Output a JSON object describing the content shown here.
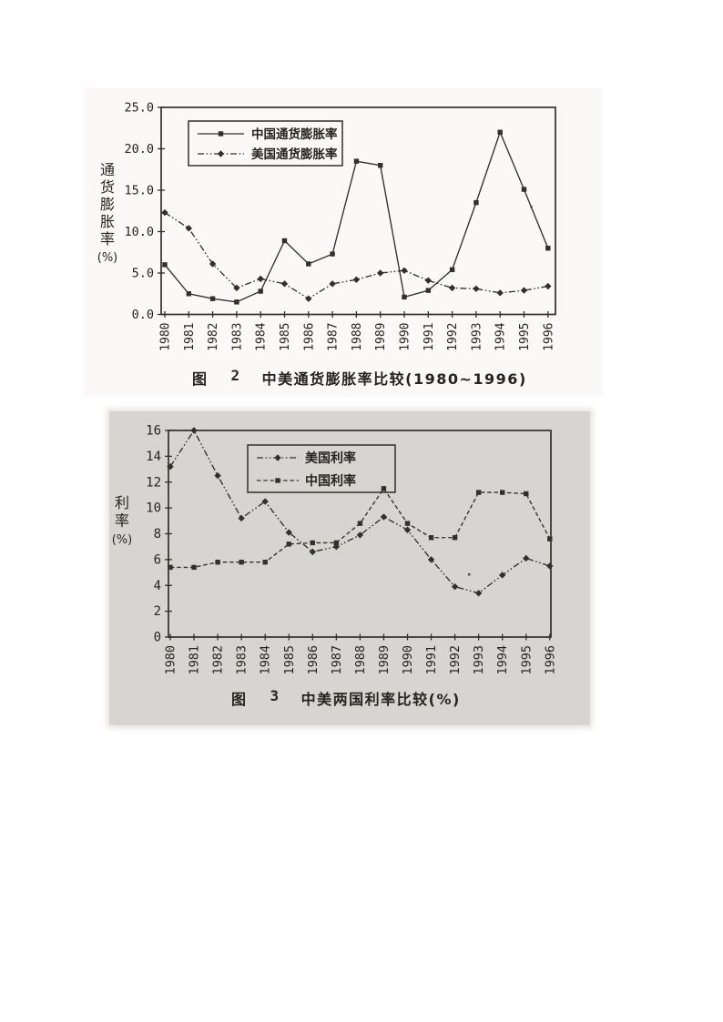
{
  "colors": {
    "ink": "#26241f",
    "line": "#33302b",
    "paper": "#ffffff",
    "scan_gray": "#d7d5d1"
  },
  "chart_data": [
    {
      "type": "line",
      "figure_label": "图",
      "figure_number": "2",
      "caption": "中美通货膨胀率比较(1980~1996)",
      "ylabel": "通货膨胀率(%)",
      "ylabel_stacked": [
        "通",
        "货",
        "膨",
        "胀",
        "率",
        "(%)"
      ],
      "ylim": [
        0,
        25
      ],
      "ytick_values": [
        0,
        5,
        10,
        15,
        20,
        25
      ],
      "ytick_labels": [
        "0.0",
        "5.0",
        "10.0",
        "15.0",
        "20.0",
        "25.0"
      ],
      "categories": [
        "1980",
        "1981",
        "1982",
        "1983",
        "1984",
        "1985",
        "1986",
        "1987",
        "1988",
        "1989",
        "1990",
        "1991",
        "1992",
        "1993",
        "1994",
        "1995",
        "1996"
      ],
      "grid": false,
      "legend_position": "top-left-inside",
      "series": [
        {
          "name": "中国通货膨胀率",
          "marker": "square",
          "line_style": "solid",
          "values": [
            6.0,
            2.5,
            1.9,
            1.5,
            2.8,
            8.9,
            6.1,
            7.3,
            18.5,
            18.0,
            2.1,
            2.9,
            5.4,
            13.5,
            22.0,
            15.1,
            8.0
          ]
        },
        {
          "name": "美国通货膨胀率",
          "marker": "diamond",
          "line_style": "dashdot",
          "values": [
            12.3,
            10.4,
            6.1,
            3.2,
            4.3,
            3.7,
            1.9,
            3.7,
            4.2,
            5.0,
            5.3,
            4.1,
            3.2,
            3.1,
            2.6,
            2.9,
            3.4
          ]
        }
      ],
      "stray_points": [
        {
          "x_index": 15.3,
          "value": 13.0
        }
      ]
    },
    {
      "type": "line",
      "figure_label": "图",
      "figure_number": "3",
      "caption": "中美两国利率比较(%)",
      "ylabel": "利率(%)",
      "ylabel_stacked": [
        "利",
        "率",
        "(%)"
      ],
      "ylim": [
        0,
        16
      ],
      "ytick_values": [
        0,
        2,
        4,
        6,
        8,
        10,
        12,
        14,
        16
      ],
      "ytick_labels": [
        "0",
        "2",
        "4",
        "6",
        "8",
        "10",
        "12",
        "14",
        "16"
      ],
      "categories": [
        "1980",
        "1981",
        "1982",
        "1983",
        "1984",
        "1985",
        "1986",
        "1987",
        "1988",
        "1989",
        "1990",
        "1991",
        "1992",
        "1993",
        "1994",
        "1995",
        "1996"
      ],
      "grid": false,
      "legend_position": "top-left-inside",
      "series": [
        {
          "name": "美国利率",
          "marker": "diamond",
          "line_style": "dashdot",
          "values": [
            13.2,
            16.0,
            12.5,
            9.2,
            10.5,
            8.1,
            6.6,
            7.0,
            7.9,
            9.3,
            8.3,
            6.0,
            3.9,
            3.4,
            4.8,
            6.1,
            5.5
          ]
        },
        {
          "name": "中国利率",
          "marker": "square",
          "line_style": "dashed",
          "values": [
            5.4,
            5.4,
            5.8,
            5.8,
            5.8,
            7.2,
            7.3,
            7.3,
            8.8,
            11.5,
            8.8,
            7.7,
            7.7,
            11.2,
            11.2,
            11.1,
            7.6
          ]
        }
      ],
      "stray_points": [
        {
          "x_index": 12.6,
          "value": 4.85
        }
      ]
    }
  ]
}
